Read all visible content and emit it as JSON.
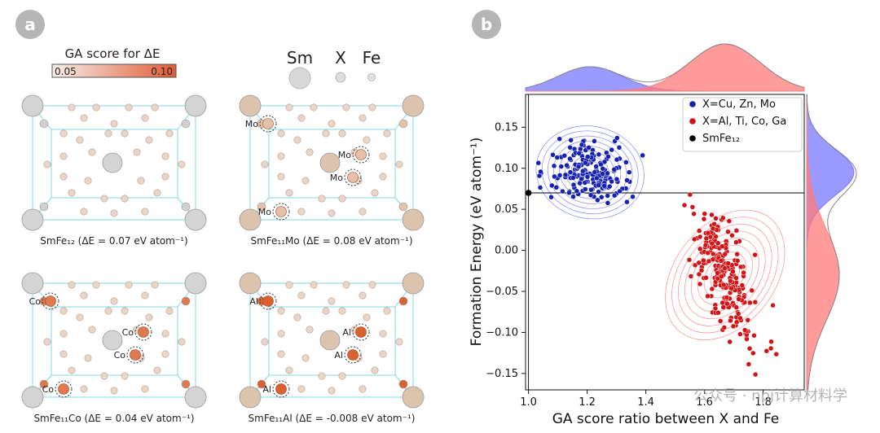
{
  "panel_a": {
    "badge": "a",
    "colorbar": {
      "title": "GA score for ΔE",
      "min_label": "0.05",
      "max_label": "0.10",
      "color_low": "#f7efea",
      "color_high": "#e05a35"
    },
    "legend": {
      "sm": "Sm",
      "x": "X",
      "fe": "Fe"
    },
    "cells": [
      {
        "caption": "SmFe₁₂ (ΔE = 0.07 eV atom⁻¹)",
        "sm_color": "#d4d4d4",
        "fe_color": "#ead6c8",
        "x_color": "#d0d0d0",
        "x_labels": []
      },
      {
        "caption": "SmFe₁₁Mo (ΔE = 0.08 eV atom⁻¹)",
        "sm_color": "#dcc3ae",
        "fe_color": "#ead6c8",
        "x_color": "#e6c1aa",
        "x_labels": [
          "Mo",
          "Mo",
          "Mo",
          "Mo"
        ]
      },
      {
        "caption": "SmFe₁₁Co (ΔE = 0.04 eV atom⁻¹)",
        "sm_color": "#d4d4d4",
        "fe_color": "#ead6c8",
        "x_color": "#e07a4e",
        "x_labels": [
          "Co",
          "Co",
          "Co",
          "Co"
        ]
      },
      {
        "caption": "SmFe₁₁Al (ΔE = -0.008 eV atom⁻¹)",
        "sm_color": "#dcc3ae",
        "fe_color": "#ead6c8",
        "x_color": "#d9622f",
        "x_labels": [
          "Al",
          "Al",
          "Al",
          "Al"
        ]
      }
    ]
  },
  "panel_b": {
    "badge": "b"
  },
  "chart_data": {
    "type": "scatter",
    "xlabel": "GA score ratio between X and Fe",
    "ylabel": "Formation Energy (eV atom⁻¹)",
    "xlim": [
      0.99,
      1.94
    ],
    "ylim": [
      -0.17,
      0.19
    ],
    "xticks": [
      1.0,
      1.2,
      1.4,
      1.6,
      1.8
    ],
    "xtick_labels": [
      "1.0",
      "1.2",
      "1.4",
      "1.6",
      "1.8"
    ],
    "yticks": [
      0.15,
      0.1,
      0.05,
      0.0,
      -0.05,
      -0.1,
      -0.15
    ],
    "ytick_labels": [
      "0.15",
      "0.10",
      "0.05",
      "0.00",
      "−0.05",
      "−0.10",
      "−0.15"
    ],
    "reference": {
      "x": 1.0,
      "y": 0.07
    },
    "legend_position": "top-right",
    "series": [
      {
        "name": "X=Cu, Zn, Mo",
        "color": "#1522b0",
        "kde_color": "#6b6bff",
        "center": [
          1.21,
          0.095
        ],
        "spread": [
          0.13,
          0.035
        ],
        "count": 190,
        "x_range": [
          1.0,
          1.47
        ],
        "y_range": [
          0.05,
          0.18
        ],
        "seed": 11
      },
      {
        "name": "X=Al, Ti, Co, Ga",
        "color": "#d01418",
        "kde_color": "#ff7070",
        "center": [
          1.67,
          -0.03
        ],
        "spread": [
          0.12,
          0.055
        ],
        "count": 230,
        "x_range": [
          1.38,
          1.93
        ],
        "y_range": [
          -0.16,
          0.07
        ],
        "seed": 29
      },
      {
        "name": "SmFe₁₂",
        "color": "#000000",
        "x": 1.0,
        "y": 0.07
      }
    ]
  },
  "watermark": "公众号 · npj计算材料学"
}
